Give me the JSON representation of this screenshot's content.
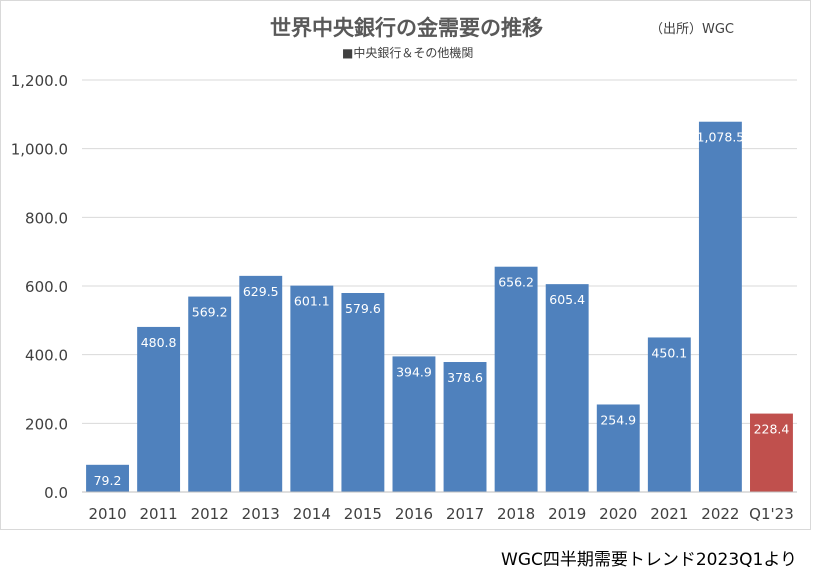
{
  "chart": {
    "title": "世界中央銀行の金需要の推移",
    "source": "（出所）WGC",
    "legend_label": "■中央銀行＆その他機関",
    "footer_note": "WGC四半期需要トレンド2023Q1より"
  },
  "chart_data": {
    "type": "bar",
    "title": "世界中央銀行の金需要の推移",
    "categories": [
      "2010",
      "2011",
      "2012",
      "2013",
      "2014",
      "2015",
      "2016",
      "2017",
      "2018",
      "2019",
      "2020",
      "2021",
      "2022",
      "Q1'23"
    ],
    "series": [
      {
        "name": "中央銀行＆その他機関",
        "values": [
          79.2,
          480.8,
          569.2,
          629.5,
          601.1,
          579.6,
          394.9,
          378.6,
          656.2,
          605.4,
          254.9,
          450.1,
          1078.5,
          228.4
        ],
        "labels": [
          "79.2",
          "480.8",
          "569.2",
          "629.5",
          "601.1",
          "579.6",
          "394.9",
          "378.6",
          "656.2",
          "605.4",
          "254.9",
          "450.1",
          "1,078.5",
          "228.4"
        ]
      }
    ],
    "ylim": [
      0,
      1200
    ],
    "yticks": [
      0,
      200,
      400,
      600,
      800,
      1000,
      1200
    ],
    "ytick_labels": [
      "0.0",
      "200.0",
      "400.0",
      "600.0",
      "800.0",
      "1,000.0",
      "1,200.0"
    ],
    "grid": true,
    "legend": "top-center",
    "colors": {
      "default": "#4f81bd",
      "highlight": "#c0504d",
      "highlight_index": 13
    }
  }
}
